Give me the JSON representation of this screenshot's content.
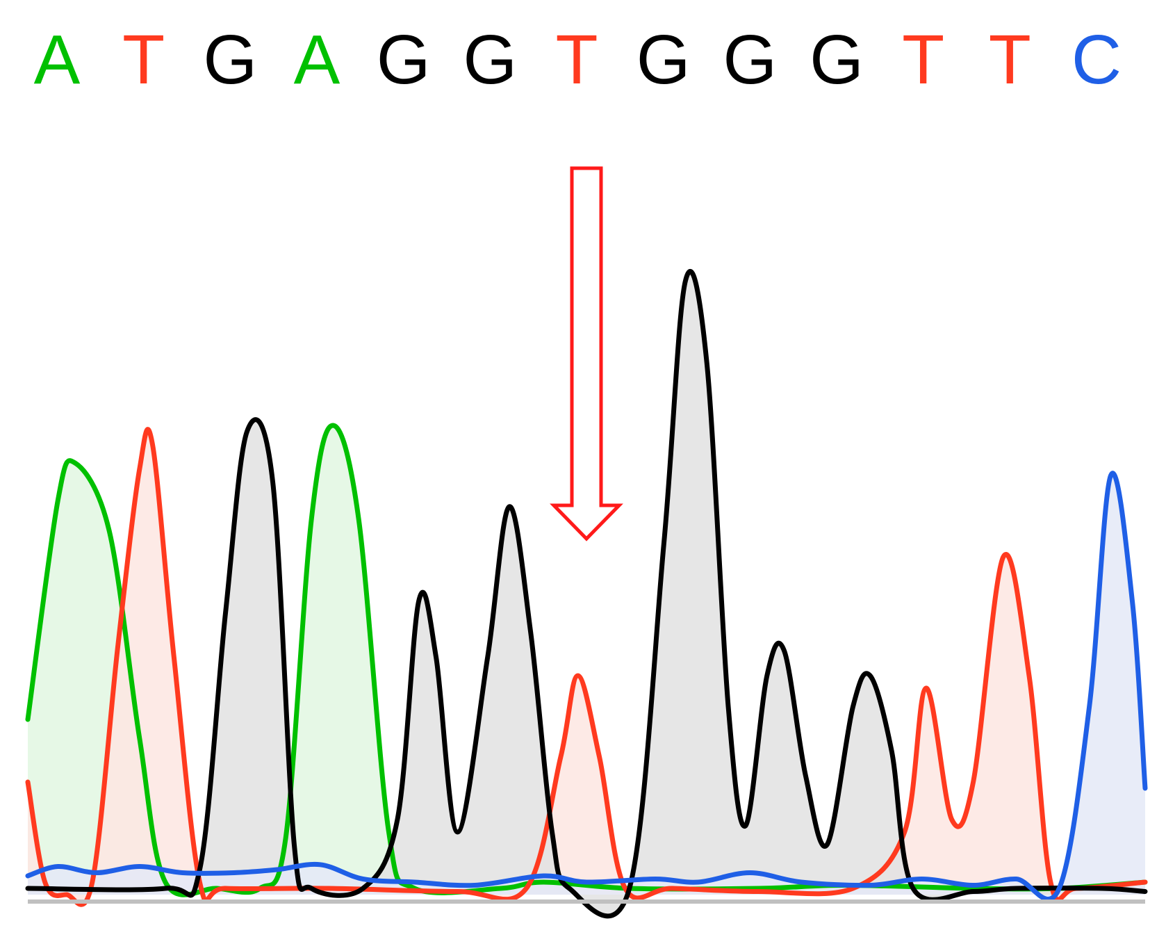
{
  "chart_data": {
    "type": "line",
    "title": "",
    "xlabel": "",
    "ylabel": "",
    "ylim": [
      0,
      1.0
    ],
    "grid": false,
    "base_calls": [
      {
        "base": "A",
        "channel": "A"
      },
      {
        "base": "T",
        "channel": "T"
      },
      {
        "base": "G",
        "channel": "G"
      },
      {
        "base": "A",
        "channel": "A"
      },
      {
        "base": "G",
        "channel": "G"
      },
      {
        "base": "G",
        "channel": "G"
      },
      {
        "base": "T",
        "channel": "T"
      },
      {
        "base": "G",
        "channel": "G"
      },
      {
        "base": "G",
        "channel": "G"
      },
      {
        "base": "G",
        "channel": "G"
      },
      {
        "base": "T",
        "channel": "T"
      },
      {
        "base": "T",
        "channel": "T"
      },
      {
        "base": "C",
        "channel": "C"
      }
    ],
    "series": [
      {
        "channel": "A",
        "color": "#00c000",
        "fill": "#e2f7e2",
        "points": [
          [
            0.0,
            0.28
          ],
          [
            0.35,
            0.63
          ],
          [
            0.55,
            0.69
          ],
          [
            0.95,
            0.58
          ],
          [
            1.3,
            0.25
          ],
          [
            1.6,
            0.02
          ],
          [
            2.2,
            0.01
          ],
          [
            2.7,
            0.01
          ],
          [
            3.0,
            0.09
          ],
          [
            3.3,
            0.6
          ],
          [
            3.55,
            0.75
          ],
          [
            3.85,
            0.6
          ],
          [
            4.2,
            0.1
          ],
          [
            4.5,
            0.01
          ],
          [
            5.5,
            0.01
          ],
          [
            6.0,
            0.02
          ],
          [
            7.0,
            0.01
          ],
          [
            8.5,
            0.01
          ],
          [
            9.5,
            0.015
          ],
          [
            11.0,
            0.01
          ],
          [
            12.0,
            0.01
          ],
          [
            13.0,
            0.02
          ]
        ]
      },
      {
        "channel": "T",
        "color": "#ff3a1f",
        "fill": "#fde6e2",
        "points": [
          [
            0.0,
            0.18
          ],
          [
            0.2,
            0.02
          ],
          [
            0.45,
            0.0
          ],
          [
            0.75,
            0.02
          ],
          [
            1.05,
            0.4
          ],
          [
            1.3,
            0.68
          ],
          [
            1.45,
            0.72
          ],
          [
            1.7,
            0.38
          ],
          [
            2.0,
            0.02
          ],
          [
            2.3,
            0.01
          ],
          [
            3.5,
            0.01
          ],
          [
            5.0,
            0.005
          ],
          [
            5.8,
            0.01
          ],
          [
            6.2,
            0.22
          ],
          [
            6.4,
            0.35
          ],
          [
            6.65,
            0.22
          ],
          [
            6.95,
            0.01
          ],
          [
            7.5,
            0.01
          ],
          [
            8.5,
            0.005
          ],
          [
            9.6,
            0.01
          ],
          [
            10.2,
            0.1
          ],
          [
            10.45,
            0.33
          ],
          [
            10.75,
            0.12
          ],
          [
            11.0,
            0.18
          ],
          [
            11.35,
            0.54
          ],
          [
            11.65,
            0.35
          ],
          [
            11.9,
            0.02
          ],
          [
            12.2,
            0.01
          ],
          [
            13.0,
            0.02
          ]
        ]
      },
      {
        "channel": "G",
        "color": "#000000",
        "fill": "#e2e2e2",
        "points": [
          [
            0.0,
            0.01
          ],
          [
            1.6,
            0.01
          ],
          [
            2.0,
            0.04
          ],
          [
            2.3,
            0.45
          ],
          [
            2.55,
            0.74
          ],
          [
            2.85,
            0.66
          ],
          [
            3.1,
            0.08
          ],
          [
            3.3,
            0.01
          ],
          [
            3.9,
            0.01
          ],
          [
            4.3,
            0.12
          ],
          [
            4.55,
            0.47
          ],
          [
            4.75,
            0.38
          ],
          [
            5.0,
            0.1
          ],
          [
            5.35,
            0.38
          ],
          [
            5.6,
            0.62
          ],
          [
            5.85,
            0.42
          ],
          [
            6.1,
            0.1
          ],
          [
            6.3,
            0.01
          ],
          [
            7.0,
            0.01
          ],
          [
            7.4,
            0.56
          ],
          [
            7.65,
            0.98
          ],
          [
            7.9,
            0.85
          ],
          [
            8.15,
            0.3
          ],
          [
            8.35,
            0.11
          ],
          [
            8.6,
            0.35
          ],
          [
            8.8,
            0.39
          ],
          [
            9.05,
            0.19
          ],
          [
            9.3,
            0.08
          ],
          [
            9.6,
            0.3
          ],
          [
            9.8,
            0.35
          ],
          [
            10.05,
            0.23
          ],
          [
            10.3,
            0.01
          ],
          [
            11.0,
            0.005
          ],
          [
            11.5,
            0.01
          ],
          [
            12.5,
            0.01
          ],
          [
            13.0,
            0.005
          ]
        ]
      },
      {
        "channel": "C",
        "color": "#1f5fe6",
        "fill": "#e4e9f7",
        "points": [
          [
            0.0,
            0.03
          ],
          [
            0.35,
            0.045
          ],
          [
            0.8,
            0.035
          ],
          [
            1.3,
            0.045
          ],
          [
            1.8,
            0.035
          ],
          [
            2.4,
            0.035
          ],
          [
            2.9,
            0.04
          ],
          [
            3.4,
            0.048
          ],
          [
            3.9,
            0.025
          ],
          [
            4.5,
            0.02
          ],
          [
            5.2,
            0.015
          ],
          [
            6.0,
            0.03
          ],
          [
            6.5,
            0.02
          ],
          [
            7.3,
            0.025
          ],
          [
            7.8,
            0.02
          ],
          [
            8.4,
            0.035
          ],
          [
            9.0,
            0.02
          ],
          [
            9.8,
            0.015
          ],
          [
            10.4,
            0.025
          ],
          [
            11.0,
            0.015
          ],
          [
            11.5,
            0.025
          ],
          [
            12.0,
            0.01
          ],
          [
            12.35,
            0.3
          ],
          [
            12.6,
            0.67
          ],
          [
            12.85,
            0.47
          ],
          [
            13.0,
            0.17
          ]
        ]
      }
    ]
  },
  "annotation": {
    "type": "hollow-arrow",
    "color": "#ff1a1a",
    "points_to_base_index": 6
  }
}
